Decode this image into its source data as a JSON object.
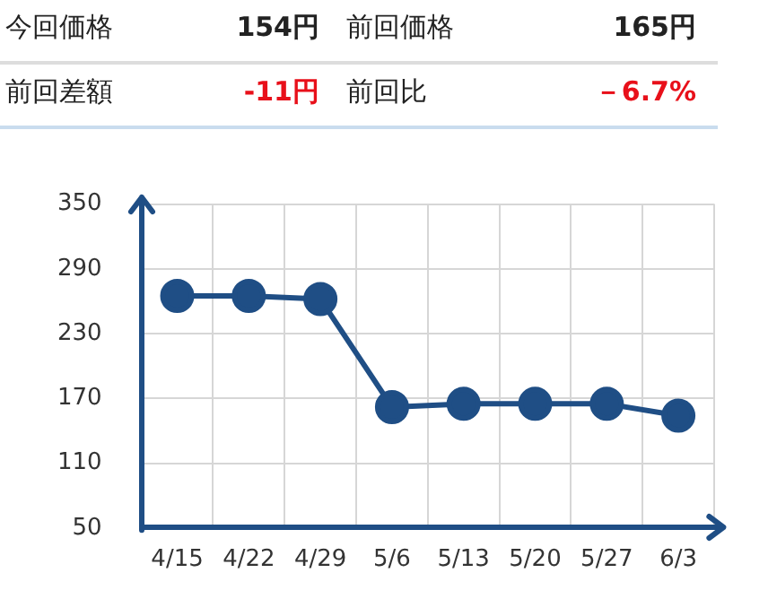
{
  "chart_data": [
    {
      "type": "other",
      "annotations": [
        "今回価格",
        "154円",
        "前回価格",
        "165円",
        "前回差額",
        "-11円",
        "前回比",
        "－6.7%"
      ]
    },
    {
      "type": "line",
      "categories": [
        "4/15",
        "4/22",
        "4/29",
        "5/6",
        "5/13",
        "5/20",
        "5/27",
        "6/3"
      ],
      "series": [
        {
          "color": "#1f4e85",
          "values": [
            265,
            265,
            262,
            162,
            165,
            165,
            165,
            154
          ]
        }
      ],
      "ylim": [
        50,
        350
      ],
      "yticks": [
        50,
        110,
        170,
        230,
        290,
        350
      ],
      "grid": true,
      "legend": false,
      "marker": "circle",
      "line_style": "solid"
    }
  ]
}
